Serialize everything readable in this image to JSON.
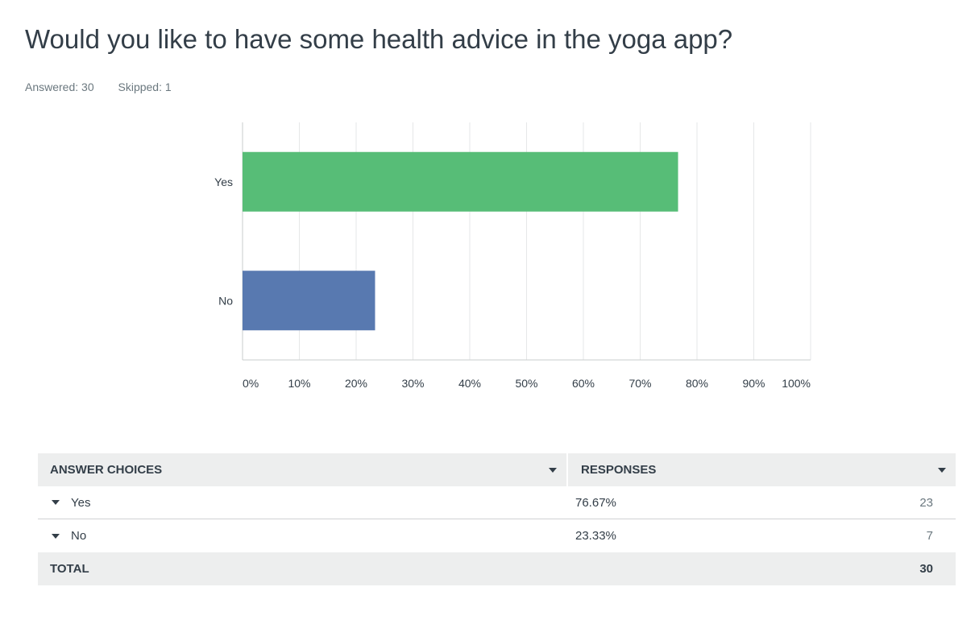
{
  "question": {
    "title": "Would you like to have some health advice in the yoga app?",
    "answered": "Answered: 30",
    "skipped": "Skipped: 1"
  },
  "chart_data": {
    "type": "bar",
    "orientation": "horizontal",
    "categories": [
      "Yes",
      "No"
    ],
    "values": [
      76.67,
      23.33
    ],
    "colors": [
      "#57bd77",
      "#5879b0"
    ],
    "xlim": [
      0,
      100
    ],
    "xticks": [
      "0%",
      "10%",
      "20%",
      "30%",
      "40%",
      "50%",
      "60%",
      "70%",
      "80%",
      "90%",
      "100%"
    ],
    "grid": true,
    "title": "",
    "xlabel": "",
    "ylabel": ""
  },
  "table": {
    "header": {
      "choices": "ANSWER CHOICES",
      "responses": "RESPONSES"
    },
    "rows": [
      {
        "choice": "Yes",
        "percent": "76.67%",
        "count": "23"
      },
      {
        "choice": "No",
        "percent": "23.33%",
        "count": "7"
      }
    ],
    "total": {
      "label": "TOTAL",
      "count": "30"
    }
  }
}
